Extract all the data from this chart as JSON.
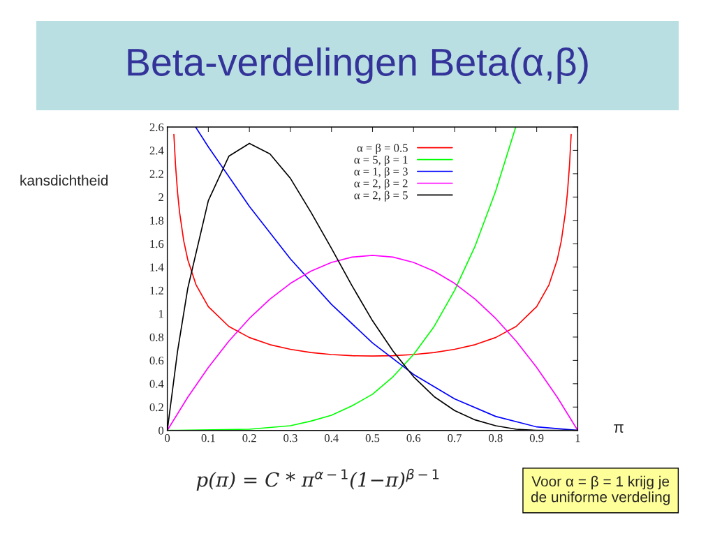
{
  "chart_data": {
    "type": "line",
    "title": "Beta-verdelingen Beta(α,β)",
    "xlabel": "π",
    "ylabel": "kansdichtheid",
    "annotations": [
      "p(π) = C * π$^{α−1}$(1−π)$^{β−1}$",
      "Voor α = β = 1 krijg je\nde uniforme verdeling"
    ],
    "xlim": [
      0,
      1
    ],
    "ylim": [
      0,
      2.6
    ],
    "xticks": [
      0,
      0.1,
      0.2,
      0.3,
      0.4,
      0.5,
      0.6,
      0.7,
      0.8,
      0.9,
      1
    ],
    "yticks": [
      0,
      0.2,
      0.4,
      0.6,
      0.8,
      1,
      1.2,
      1.4,
      1.6,
      1.8,
      2,
      2.2,
      2.4,
      2.6
    ],
    "grid": false,
    "legend": "top right",
    "series": [
      {
        "name": "α = β = 0.5",
        "color": "#ff0000",
        "x": [
          0.016,
          0.02,
          0.025,
          0.03,
          0.04,
          0.05,
          0.07,
          0.1,
          0.15,
          0.2,
          0.25,
          0.3,
          0.35,
          0.4,
          0.45,
          0.5,
          0.55,
          0.6,
          0.65,
          0.7,
          0.75,
          0.8,
          0.85,
          0.9,
          0.93,
          0.95,
          0.96,
          0.97,
          0.975,
          0.98,
          0.984
        ],
        "values": [
          2.537,
          2.274,
          2.039,
          1.866,
          1.624,
          1.461,
          1.248,
          1.061,
          0.891,
          0.796,
          0.735,
          0.695,
          0.667,
          0.65,
          0.64,
          0.637,
          0.64,
          0.65,
          0.667,
          0.695,
          0.735,
          0.796,
          0.891,
          1.061,
          1.248,
          1.461,
          1.624,
          1.866,
          2.039,
          2.274,
          2.537
        ]
      },
      {
        "name": "α = 5, β = 1",
        "color": "#00ff00",
        "x": [
          0,
          0.2,
          0.3,
          0.35,
          0.4,
          0.45,
          0.5,
          0.55,
          0.6,
          0.65,
          0.7,
          0.75,
          0.8,
          0.849
        ],
        "values": [
          0,
          0.01,
          0.04,
          0.08,
          0.13,
          0.21,
          0.31,
          0.46,
          0.65,
          0.89,
          1.2,
          1.58,
          2.05,
          2.6
        ]
      },
      {
        "name": "α = 1, β = 3",
        "color": "#0000ff",
        "x": [
          0.069,
          0.1,
          0.2,
          0.3,
          0.4,
          0.5,
          0.6,
          0.7,
          0.8,
          0.9,
          1
        ],
        "values": [
          2.6,
          2.43,
          1.92,
          1.47,
          1.08,
          0.75,
          0.48,
          0.27,
          0.12,
          0.03,
          0
        ]
      },
      {
        "name": "α = 2, β = 2",
        "color": "#ff00ff",
        "x": [
          0,
          0.05,
          0.1,
          0.15,
          0.2,
          0.25,
          0.3,
          0.35,
          0.4,
          0.45,
          0.5,
          0.55,
          0.6,
          0.65,
          0.7,
          0.75,
          0.8,
          0.85,
          0.9,
          0.95,
          1
        ],
        "values": [
          0,
          0.285,
          0.54,
          0.765,
          0.96,
          1.125,
          1.26,
          1.365,
          1.44,
          1.485,
          1.5,
          1.485,
          1.44,
          1.365,
          1.26,
          1.125,
          0.96,
          0.765,
          0.54,
          0.285,
          0
        ]
      },
      {
        "name": "α = 2, β = 5",
        "color": "#000000",
        "x": [
          0,
          0.025,
          0.05,
          0.1,
          0.15,
          0.2,
          0.25,
          0.3,
          0.35,
          0.4,
          0.45,
          0.5,
          0.55,
          0.6,
          0.65,
          0.7,
          0.75,
          0.8,
          0.85,
          0.9,
          1
        ],
        "values": [
          0,
          0.68,
          1.22,
          1.97,
          2.35,
          2.46,
          2.37,
          2.16,
          1.87,
          1.56,
          1.24,
          0.94,
          0.68,
          0.46,
          0.29,
          0.17,
          0.09,
          0.04,
          0.01,
          0,
          0
        ]
      }
    ]
  }
}
